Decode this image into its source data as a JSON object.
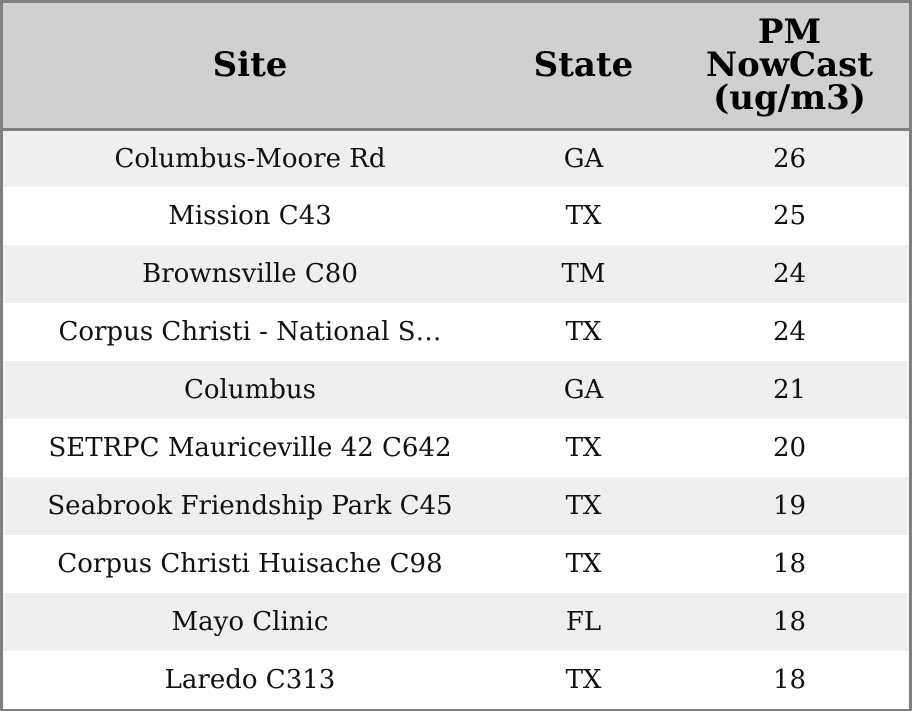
{
  "chart_data": {
    "type": "table",
    "columns": [
      "Site",
      "State",
      "PM NowCast (ug/m3)"
    ],
    "header_lines": {
      "site": "Site",
      "state": "State",
      "pm": [
        "PM",
        "NowCast",
        "(ug/m3)"
      ]
    },
    "rows": [
      {
        "site": "Columbus-Moore Rd",
        "state": "GA",
        "pm": 26
      },
      {
        "site": "Mission C43",
        "state": "TX",
        "pm": 25
      },
      {
        "site": "Brownsville C80",
        "state": "TM",
        "pm": 24
      },
      {
        "site": "Corpus Christi - National S…",
        "state": "TX",
        "pm": 24
      },
      {
        "site": "Columbus",
        "state": "GA",
        "pm": 21
      },
      {
        "site": "SETRPC Mauriceville 42 C642",
        "state": "TX",
        "pm": 20
      },
      {
        "site": "Seabrook Friendship Park C45",
        "state": "TX",
        "pm": 19
      },
      {
        "site": "Corpus Christi Huisache C98",
        "state": "TX",
        "pm": 18
      },
      {
        "site": "Mayo Clinic",
        "state": "FL",
        "pm": 18
      },
      {
        "site": "Laredo C313",
        "state": "TX",
        "pm": 18
      }
    ],
    "colors": {
      "header_bg": "#d0d0d0",
      "row_alt_bg": "#efefef",
      "row_bg": "#ffffff",
      "border": "#808080"
    }
  }
}
